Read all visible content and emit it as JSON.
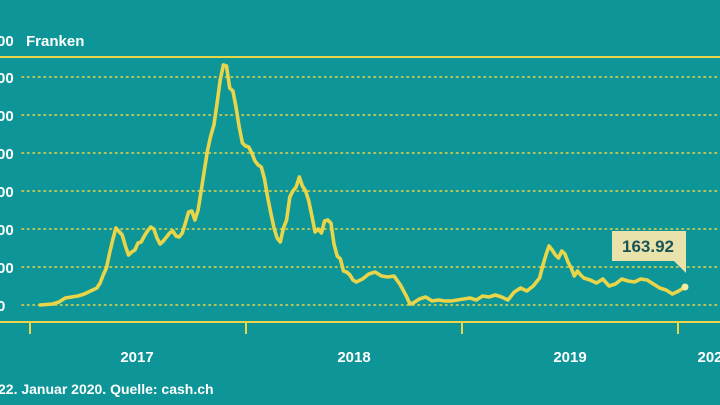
{
  "chart_data": {
    "type": "line",
    "unit_label": "Franken",
    "y_top_tick_fragment": "00",
    "y_tick_fragments": [
      "00",
      "00",
      "00",
      "00",
      "00",
      "00",
      "0",
      "0"
    ],
    "x_tick_labels": [
      "2017",
      "2018",
      "2019",
      "202"
    ],
    "source": "22. Januar 2020. Quelle: cash.ch",
    "last_value_label": "163.92",
    "colors": {
      "background": "#0d9597",
      "line": "#e9d549",
      "grid": "#e9d549",
      "text": "#ffffff",
      "callout_bg": "#e9e2ab"
    },
    "series": [
      {
        "values": [
          [
            0.08,
            10
          ],
          [
            0.1,
            11
          ],
          [
            0.11,
            13
          ],
          [
            0.12,
            17
          ],
          [
            0.13,
            18
          ],
          [
            0.14,
            19
          ],
          [
            0.15,
            21
          ],
          [
            0.16,
            24
          ],
          [
            0.17,
            27
          ],
          [
            0.175,
            32
          ],
          [
            0.18,
            40
          ],
          [
            0.185,
            47
          ],
          [
            0.19,
            62
          ],
          [
            0.195,
            75
          ],
          [
            0.2,
            87
          ],
          [
            0.21,
            80
          ],
          [
            0.215,
            69
          ],
          [
            0.22,
            60
          ],
          [
            0.225,
            63
          ],
          [
            0.23,
            65
          ],
          [
            0.235,
            72
          ],
          [
            0.24,
            73
          ],
          [
            0.245,
            79
          ],
          [
            0.25,
            84
          ],
          [
            0.255,
            88
          ],
          [
            0.26,
            86
          ],
          [
            0.265,
            77
          ],
          [
            0.27,
            71
          ],
          [
            0.275,
            74
          ],
          [
            0.28,
            78
          ],
          [
            0.285,
            82
          ],
          [
            0.29,
            84
          ],
          [
            0.295,
            79
          ],
          [
            0.3,
            78
          ],
          [
            0.305,
            82
          ],
          [
            0.31,
            92
          ],
          [
            0.315,
            103
          ],
          [
            0.32,
            104
          ],
          [
            0.325,
            95
          ],
          [
            0.33,
            105
          ],
          [
            0.335,
            125
          ],
          [
            0.34,
            145
          ],
          [
            0.345,
            165
          ],
          [
            0.35,
            179
          ],
          [
            0.355,
            190
          ],
          [
            0.36,
            212
          ],
          [
            0.365,
            235
          ],
          [
            0.37,
            250
          ],
          [
            0.375,
            249
          ],
          [
            0.38,
            227
          ],
          [
            0.385,
            224
          ],
          [
            0.39,
            208
          ],
          [
            0.395,
            188
          ],
          [
            0.4,
            172
          ],
          [
            0.405,
            169
          ],
          [
            0.41,
            168
          ],
          [
            0.415,
            162
          ],
          [
            0.42,
            154
          ],
          [
            0.425,
            150
          ],
          [
            0.43,
            148
          ],
          [
            0.435,
            136
          ],
          [
            0.44,
            118
          ],
          [
            0.445,
            102
          ],
          [
            0.45,
            87
          ],
          [
            0.455,
            77
          ],
          [
            0.46,
            73
          ],
          [
            0.465,
            87
          ],
          [
            0.47,
            95
          ],
          [
            0.475,
            118
          ],
          [
            0.48,
            124
          ],
          [
            0.485,
            128
          ],
          [
            0.49,
            138
          ],
          [
            0.495,
            129
          ],
          [
            0.5,
            124
          ],
          [
            0.505,
            114
          ],
          [
            0.51,
            99
          ],
          [
            0.515,
            83
          ],
          [
            0.52,
            86
          ],
          [
            0.525,
            82
          ],
          [
            0.53,
            94
          ],
          [
            0.535,
            95
          ],
          [
            0.54,
            92
          ],
          [
            0.545,
            71
          ],
          [
            0.55,
            59
          ],
          [
            0.555,
            56
          ],
          [
            0.56,
            44
          ],
          [
            0.565,
            43
          ],
          [
            0.57,
            40
          ],
          [
            0.575,
            35
          ],
          [
            0.58,
            33
          ],
          [
            0.59,
            36
          ],
          [
            0.6,
            41
          ],
          [
            0.61,
            43
          ],
          [
            0.62,
            39
          ],
          [
            0.63,
            38
          ],
          [
            0.64,
            39
          ],
          [
            0.65,
            30
          ],
          [
            0.66,
            18
          ],
          [
            0.665,
            11
          ],
          [
            0.67,
            12
          ],
          [
            0.68,
            16
          ],
          [
            0.69,
            18
          ],
          [
            0.7,
            14
          ],
          [
            0.71,
            15
          ],
          [
            0.72,
            14
          ],
          [
            0.73,
            14
          ],
          [
            0.74,
            15
          ],
          [
            0.75,
            16
          ],
          [
            0.76,
            17
          ],
          [
            0.77,
            15
          ],
          [
            0.78,
            19
          ],
          [
            0.79,
            18
          ],
          [
            0.8,
            20
          ],
          [
            0.81,
            18
          ],
          [
            0.82,
            15
          ],
          [
            0.83,
            23
          ],
          [
            0.84,
            27
          ],
          [
            0.85,
            24
          ],
          [
            0.86,
            29
          ],
          [
            0.87,
            37
          ],
          [
            0.875,
            49
          ],
          [
            0.88,
            60
          ],
          [
            0.885,
            69
          ],
          [
            0.89,
            65
          ],
          [
            0.895,
            60
          ],
          [
            0.9,
            57
          ],
          [
            0.905,
            64
          ],
          [
            0.91,
            61
          ],
          [
            0.915,
            53
          ],
          [
            0.92,
            47
          ],
          [
            0.925,
            39
          ],
          [
            0.93,
            44
          ],
          [
            0.935,
            40
          ],
          [
            0.94,
            37
          ],
          [
            0.95,
            35
          ],
          [
            0.96,
            32
          ],
          [
            0.97,
            36
          ],
          [
            0.98,
            29
          ],
          [
            0.99,
            31
          ],
          [
            1.0,
            36
          ],
          [
            1.01,
            34
          ],
          [
            1.02,
            33
          ],
          [
            1.03,
            36
          ],
          [
            1.04,
            35
          ],
          [
            1.05,
            31
          ],
          [
            1.06,
            27
          ],
          [
            1.07,
            25
          ],
          [
            1.08,
            21
          ],
          [
            1.09,
            24
          ],
          [
            1.1,
            28
          ]
        ]
      }
    ]
  }
}
